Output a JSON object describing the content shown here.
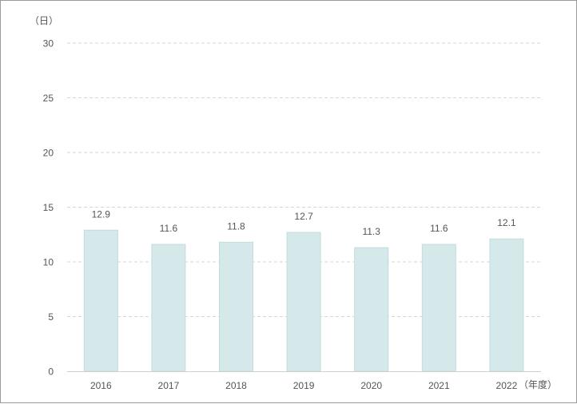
{
  "chart_data": {
    "type": "bar",
    "title": "",
    "xlabel": "",
    "ylabel": "",
    "y_unit": "（日）",
    "x_unit": "（年度）",
    "categories": [
      "2016",
      "2017",
      "2018",
      "2019",
      "2020",
      "2021",
      "2022"
    ],
    "values": [
      12.9,
      11.6,
      11.8,
      12.7,
      11.3,
      11.6,
      12.1
    ],
    "value_labels": [
      "12.9",
      "11.6",
      "11.8",
      "12.7",
      "11.3",
      "11.6",
      "12.1"
    ],
    "ylim": [
      0,
      30
    ],
    "yticks": [
      "0",
      "5",
      "10",
      "15",
      "20",
      "25",
      "30"
    ],
    "grid": true,
    "grid_style": "dashed",
    "legend": "none",
    "bar_color": "#d5e9ea",
    "bar_edge_color": "#c3dcdd",
    "grid_color": "#d6d6d6",
    "text_color": "#555555"
  }
}
